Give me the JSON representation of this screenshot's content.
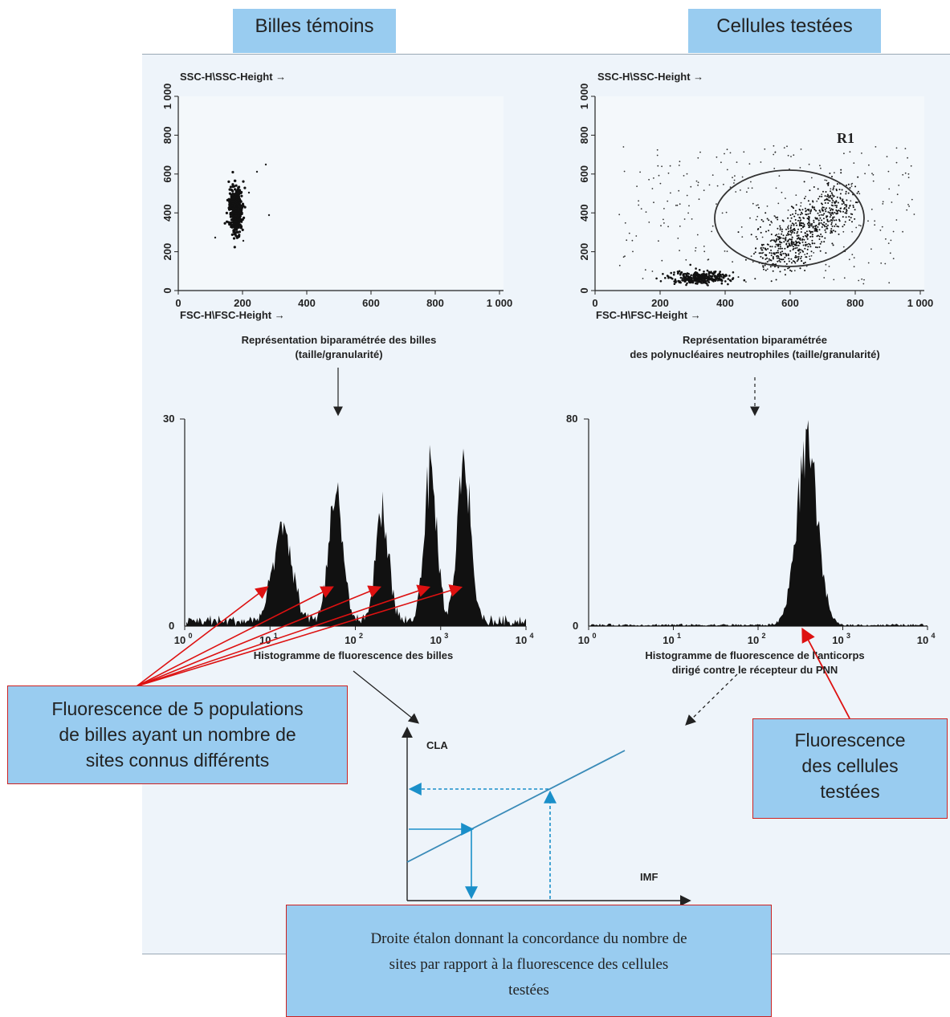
{
  "headers": {
    "left": "Billes témoins",
    "right": "Cellules testées"
  },
  "scatter_left": {
    "y_label": "SSC-H\\SSC-Height →",
    "x_label": "FSC-H\\FSC-Height →",
    "y_ticks": [
      "0",
      "200",
      "400",
      "600",
      "800",
      "1 000"
    ],
    "x_ticks": [
      "0",
      "200",
      "400",
      "600",
      "800",
      "1 000"
    ],
    "caption_line1": "Représentation biparamétrée des billes",
    "caption_line2": "(taille/granularité)"
  },
  "scatter_right": {
    "y_label": "SSC-H\\SSC-Height →",
    "x_label": "FSC-H\\FSC-Height →",
    "y_ticks": [
      "0",
      "200",
      "400",
      "600",
      "800",
      "1 000"
    ],
    "x_ticks": [
      "0",
      "200",
      "400",
      "600",
      "800",
      "1 000"
    ],
    "gate_label": "R1",
    "caption_line1": "Représentation biparamétrée",
    "caption_line2": "des polynucléaires neutrophiles (taille/granularité)"
  },
  "hist_left": {
    "y_max": "30",
    "y_zero": "0",
    "x_ticks": [
      "10",
      "10",
      "10",
      "10",
      "10"
    ],
    "x_exps": [
      "0",
      "1",
      "2",
      "3",
      "4"
    ],
    "caption": "Histogramme de fluorescence des billes"
  },
  "hist_right": {
    "y_max": "80",
    "y_zero": "0",
    "x_ticks": [
      "10",
      "10",
      "10",
      "10",
      "10"
    ],
    "x_exps": [
      "0",
      "1",
      "2",
      "3",
      "4"
    ],
    "caption_line1": "Histogramme de fluorescence de l'anticorps",
    "caption_line2": "dirigé contre le récepteur du PNN"
  },
  "calibration": {
    "y_axis_label": "CLA",
    "x_axis_label": "IMF"
  },
  "callouts": {
    "beads_line1": "Fluorescence de 5 populations",
    "beads_line2": "de billes ayant un nombre de",
    "beads_line3": "sites connus différents",
    "cells_line1": "Fluorescence",
    "cells_line2": "des cellules",
    "cells_line3": "testées",
    "line_line1": "Droite étalon donnant la concordance du nombre de",
    "line_line2": "sites par rapport à la fluorescence des cellules",
    "line_line3": "testées"
  },
  "colors": {
    "label_fill": "#99ccf0",
    "callout_border": "#cc2222",
    "arrow_red": "#dd1111",
    "calib_blue": "#1a8fc9",
    "panel_bg": "#eef4fa"
  }
}
